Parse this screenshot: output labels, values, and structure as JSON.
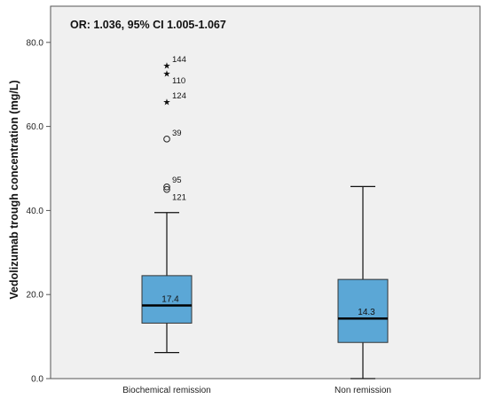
{
  "chart_data": {
    "type": "boxplot",
    "annotation": "OR: 1.036, 95% CI 1.005-1.067",
    "ylabel": "Vedolizumab trough concentration (mg/L)",
    "xlabel": "",
    "ylim": [
      0,
      85
    ],
    "yticks": [
      0,
      20,
      40,
      60,
      80
    ],
    "ytick_labels": [
      "0.0",
      "20.0",
      "40.0",
      "60.0",
      "80.0"
    ],
    "grid": false,
    "colors": {
      "box_fill": "#5ba7d6",
      "plot_bg": "#f0f0f0",
      "frame": "#555555"
    },
    "groups": [
      {
        "category": "Biochemical remission",
        "min": 6.2,
        "q1": 13.2,
        "median": 17.4,
        "q3": 24.5,
        "max": 39.5,
        "median_label": "17.4",
        "outliers": [
          {
            "value": 57.0,
            "kind": "circle",
            "label": "39"
          },
          {
            "value": 45.6,
            "kind": "circle",
            "label": "95"
          },
          {
            "value": 45.0,
            "kind": "circle",
            "label": "121"
          }
        ],
        "extremes": [
          {
            "value": 74.5,
            "label": "144"
          },
          {
            "value": 72.6,
            "label": "110"
          },
          {
            "value": 65.8,
            "label": "124"
          }
        ]
      },
      {
        "category": "Non remission",
        "min": 0.0,
        "q1": 8.6,
        "median": 14.3,
        "q3": 23.6,
        "max": 45.7,
        "median_label": "14.3",
        "outliers": [],
        "extremes": []
      }
    ]
  }
}
